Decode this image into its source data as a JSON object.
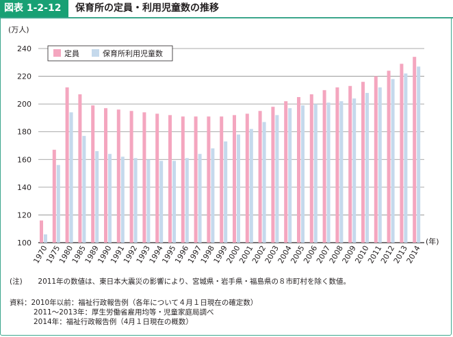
{
  "header": {
    "figure_number": "図表 1-2-12",
    "title": "保育所の定員・利用児童数の推移"
  },
  "chart_data": {
    "type": "bar",
    "ylabel": "(万人)",
    "xlabel": "(年)",
    "ylim": [
      100,
      240
    ],
    "yticks": [
      100,
      120,
      140,
      160,
      180,
      200,
      220,
      240
    ],
    "grid": true,
    "legend_position": "top-left",
    "categories": [
      "1970",
      "1975",
      "1980",
      "1985",
      "1989",
      "1990",
      "1991",
      "1992",
      "1993",
      "1994",
      "1995",
      "1996",
      "1997",
      "1998",
      "1999",
      "2000",
      "2001",
      "2002",
      "2003",
      "2004",
      "2005",
      "2006",
      "2007",
      "2008",
      "2009",
      "2010",
      "2011",
      "2012",
      "2013",
      "2014"
    ],
    "series": [
      {
        "name": "定員",
        "color": "#f4a6bf",
        "values": [
          116,
          167,
          212,
          207,
          199,
          197,
          196,
          195,
          194,
          193,
          192,
          191,
          191,
          191,
          191,
          192,
          193,
          195,
          198,
          202,
          205,
          207,
          210,
          212,
          213,
          216,
          220,
          224,
          229,
          234
        ]
      },
      {
        "name": "保育所利用児童数",
        "color": "#c5d9ec",
        "values": [
          106,
          156,
          194,
          177,
          166,
          164,
          162,
          161,
          160,
          159,
          159,
          161,
          164,
          168,
          173,
          178,
          182,
          187,
          192,
          197,
          199,
          200,
          201,
          202,
          204,
          208,
          212,
          218,
          222,
          227
        ]
      }
    ]
  },
  "notes": {
    "note_label": "(注)",
    "note_text": "2011年の数値は、東日本大震災の影響により、宮城県・岩手県・福島県の８市町村を除く数値。",
    "source_label": "資料：",
    "source_lines": [
      "2010年以前：福祉行政報告例（各年について４月１日現在の確定数）",
      "2011〜2013年：厚生労働省雇用均等・児童家庭局調べ",
      "2014年：福祉行政報告例（4月１日現在の概数）"
    ]
  }
}
